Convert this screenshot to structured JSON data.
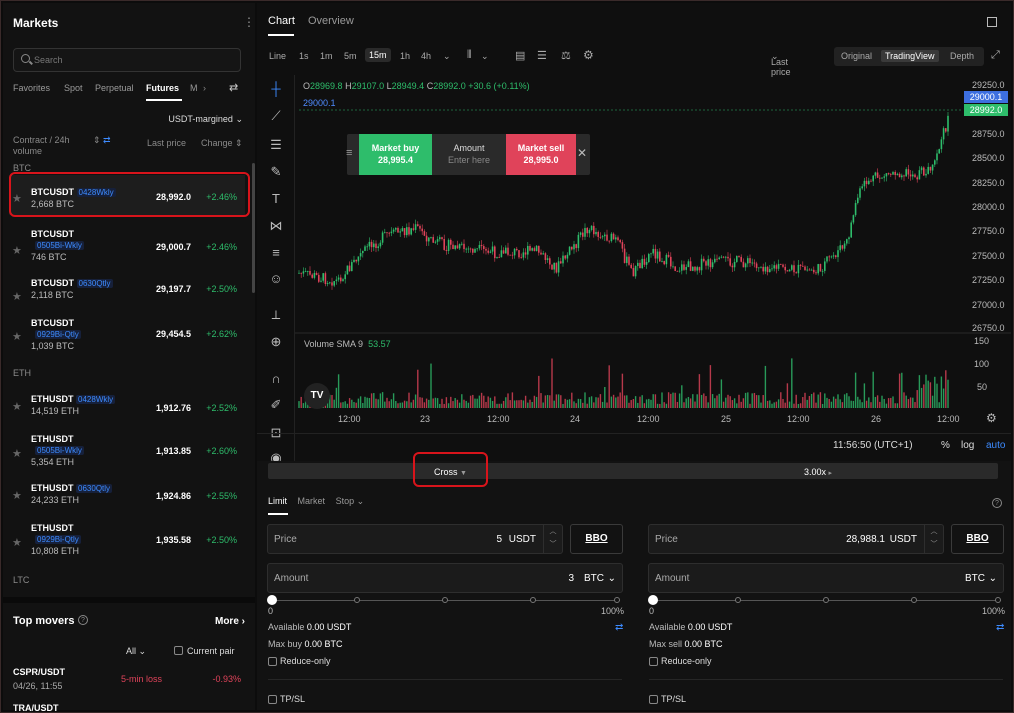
{
  "left": {
    "title": "Markets",
    "search_placeholder": "Search",
    "tabs": [
      "Favorites",
      "Spot",
      "Perpetual",
      "Futures",
      "M"
    ],
    "margin_select": "USDT-margined",
    "col_contract": "Contract / 24h volume",
    "col_last_price": "Last price",
    "col_change": "Change",
    "groups": {
      "btc": "BTC",
      "eth": "ETH",
      "ltc": "LTC"
    },
    "rows": [
      {
        "sym": "BTCUSDT",
        "badge": "0428Wkly",
        "vol": "2,668 BTC",
        "price": "28,992.0",
        "change": "+2.46%"
      },
      {
        "sym": "BTCUSDT",
        "badge": "0505Bi-Wkly",
        "vol": "746 BTC",
        "price": "29,000.7",
        "change": "+2.46%"
      },
      {
        "sym": "BTCUSDT",
        "badge": "0630Qtly",
        "vol": "2,118 BTC",
        "price": "29,197.7",
        "change": "+2.50%"
      },
      {
        "sym": "BTCUSDT",
        "badge": "0929Bi-Qtly",
        "vol": "1,039 BTC",
        "price": "29,454.5",
        "change": "+2.62%"
      },
      {
        "sym": "ETHUSDT",
        "badge": "0428Wkly",
        "vol": "14,519 ETH",
        "price": "1,912.76",
        "change": "+2.52%"
      },
      {
        "sym": "ETHUSDT",
        "badge": "0505Bi-Wkly",
        "vol": "5,354 ETH",
        "price": "1,913.85",
        "change": "+2.60%"
      },
      {
        "sym": "ETHUSDT",
        "badge": "0630Qtly",
        "vol": "24,233 ETH",
        "price": "1,924.86",
        "change": "+2.55%"
      },
      {
        "sym": "ETHUSDT",
        "badge": "0929Bi-Qtly",
        "vol": "10,808 ETH",
        "price": "1,935.58",
        "change": "+2.50%"
      }
    ],
    "top_movers": {
      "title": "Top movers",
      "more": "More",
      "filter": "All",
      "current_pair": "Current pair",
      "rows": [
        {
          "pair": "CSPR/USDT",
          "time": "04/26, 11:55",
          "event": "5-min loss",
          "change": "-0.93%"
        },
        {
          "pair": "TRA/USDT",
          "time": "",
          "event": "",
          "change": ""
        }
      ]
    }
  },
  "chart": {
    "tabs": [
      "Chart",
      "Overview"
    ],
    "intervals": [
      "Line",
      "1s",
      "1m",
      "5m",
      "15m",
      "1h",
      "4h"
    ],
    "active_interval": "15m",
    "price_type": "Last price",
    "views": [
      "Original",
      "TradingView",
      "Depth"
    ],
    "active_view": "TradingView",
    "ohlc": {
      "o": "28969.8",
      "h": "29107.0",
      "l": "28949.4",
      "c": "28992.0",
      "chg": "+30.6 (+0.11%)"
    },
    "line_label": "29000.1",
    "order_box": {
      "buy_label": "Market buy",
      "buy_price": "28,995.4",
      "amount_label": "Amount",
      "amount_placeholder": "Enter here",
      "sell_label": "Market sell",
      "sell_price": "28,995.0"
    },
    "y_ticks": [
      "29250.0",
      "28750.0",
      "28500.0",
      "28250.0",
      "28000.0",
      "27750.0",
      "27500.0",
      "27250.0",
      "27000.0",
      "26750.0"
    ],
    "tag_high": "29000.1",
    "tag_last": "28992.0",
    "volume_label": "Volume SMA 9",
    "volume_value": "53.57",
    "vol_ticks": [
      "150",
      "100",
      "50"
    ],
    "x_ticks": [
      "12:00",
      "23",
      "12:00",
      "24",
      "12:00",
      "25",
      "12:00",
      "26",
      "12:00"
    ],
    "clock": "11:56:50 (UTC+1)",
    "pct": "%",
    "log": "log",
    "auto": "auto",
    "colors": {
      "up": "#2ebd6b",
      "down": "#e0435a",
      "accent": "#3d8bff"
    }
  },
  "form": {
    "margin_mode": "Cross",
    "leverage": "3.00x",
    "tabs": [
      "Limit",
      "Market",
      "Stop"
    ],
    "buy": {
      "price_label": "Price",
      "price_value": "5",
      "price_unit": "USDT",
      "amount_label": "Amount",
      "amount_value": "3",
      "amount_unit": "BTC",
      "bbo": "BBO",
      "pct_min": "0",
      "pct_max": "100%",
      "available_label": "Available",
      "available": "0.00 USDT",
      "max_label": "Max buy",
      "max": "0.00 BTC",
      "reduce_only": "Reduce-only",
      "tpsl": "TP/SL"
    },
    "sell": {
      "price_label": "Price",
      "price_value": "28,988.1",
      "price_unit": "USDT",
      "amount_label": "Amount",
      "amount_value": "",
      "amount_unit": "BTC",
      "bbo": "BBO",
      "pct_min": "0",
      "pct_max": "100%",
      "available_label": "Available",
      "available": "0.00 USDT",
      "max_label": "Max sell",
      "max": "0.00 BTC",
      "reduce_only": "Reduce-only",
      "tpsl": "TP/SL"
    }
  }
}
